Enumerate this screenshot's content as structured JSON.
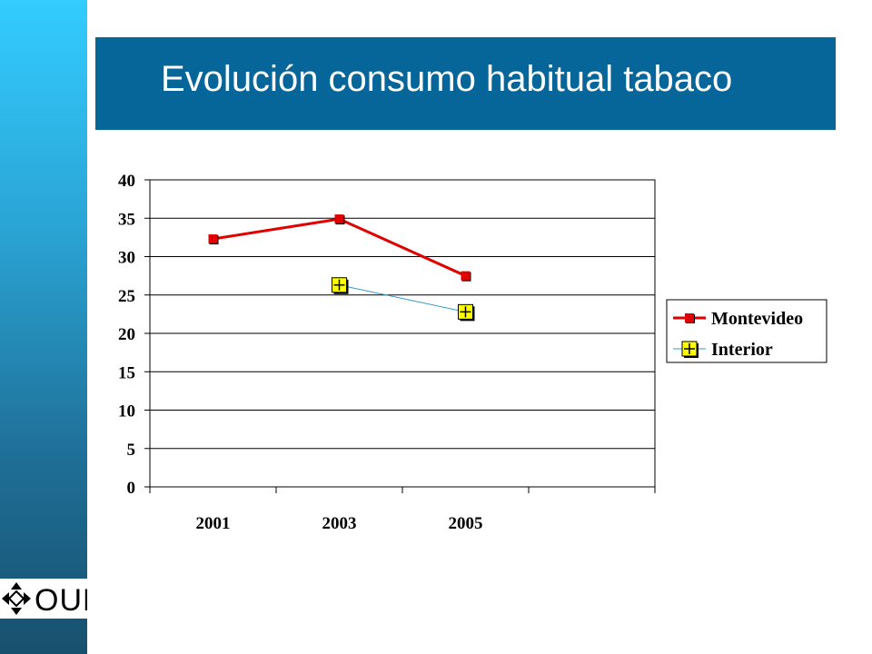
{
  "slide": {
    "title": "Evolución consumo habitual tabaco"
  },
  "logo": {
    "text": "OUD"
  },
  "colors": {
    "sidebar_top": "#33ccff",
    "sidebar_bottom": "#17506e",
    "title_bar": "#066699",
    "montevideo": "#e00000",
    "interior_line": "#3399cc",
    "interior_marker": "#ffff00"
  },
  "chart_data": {
    "type": "line",
    "categories": [
      "2001",
      "2003",
      "2005",
      ""
    ],
    "ylim": [
      0,
      40
    ],
    "yticks": [
      0,
      5,
      10,
      15,
      20,
      25,
      30,
      35,
      40
    ],
    "grid": true,
    "legend_position": "right",
    "series": [
      {
        "name": "Montevideo",
        "values": [
          32.3,
          34.9,
          27.5,
          null
        ],
        "color": "#e00000",
        "marker": "square"
      },
      {
        "name": "Interior",
        "values": [
          null,
          26.3,
          22.8,
          null
        ],
        "color": "#3399cc",
        "marker": "plus-square"
      }
    ]
  }
}
